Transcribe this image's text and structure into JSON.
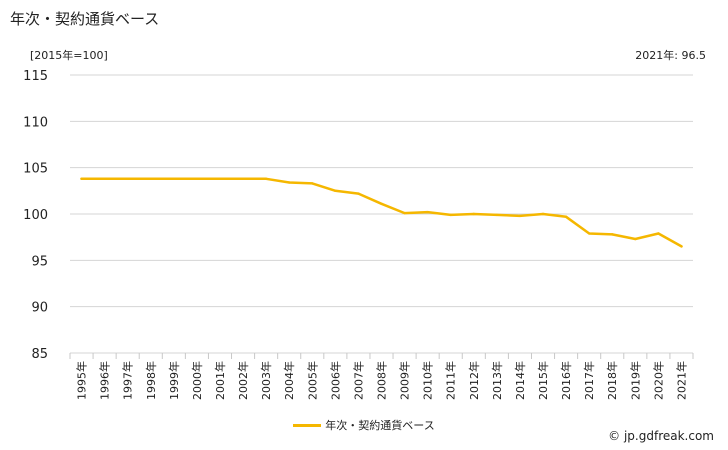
{
  "header": {
    "title": "年次・契約通貨ベース",
    "unit_label": "[2015年=100]",
    "latest_label": "2021年: 96.5"
  },
  "chart_data": {
    "type": "line",
    "title": "年次・契約通貨ベース",
    "x": [
      "1995年",
      "1996年",
      "1997年",
      "1998年",
      "1999年",
      "2000年",
      "2001年",
      "2002年",
      "2003年",
      "2004年",
      "2005年",
      "2006年",
      "2007年",
      "2008年",
      "2009年",
      "2010年",
      "2011年",
      "2012年",
      "2013年",
      "2014年",
      "2015年",
      "2016年",
      "2017年",
      "2018年",
      "2019年",
      "2020年",
      "2021年"
    ],
    "series": [
      {
        "name": "年次・契約通貨ベース",
        "color": "#f5b700",
        "values": [
          103.8,
          103.8,
          103.8,
          103.8,
          103.8,
          103.8,
          103.8,
          103.8,
          103.8,
          103.4,
          103.3,
          102.5,
          102.2,
          101.1,
          100.1,
          100.2,
          99.9,
          100.0,
          99.9,
          99.8,
          100.0,
          99.7,
          97.9,
          97.8,
          97.3,
          97.9,
          96.5
        ]
      }
    ],
    "yticks": [
      85,
      90,
      95,
      100,
      105,
      110,
      115
    ],
    "ylim": [
      85,
      115
    ],
    "grid": true,
    "legend": "bottom-center"
  },
  "legend": {
    "label": "年次・契約通貨ベース",
    "color": "#f5b700"
  },
  "footer": {
    "credit": "© jp.gdfreak.com"
  }
}
